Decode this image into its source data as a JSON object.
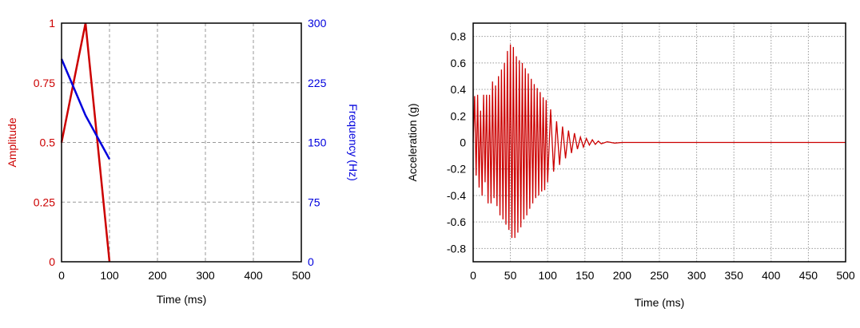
{
  "chart_data": [
    {
      "type": "line",
      "title": "",
      "xlabel": "Time (ms)",
      "ylabel": "Amplitude",
      "y2label": "Frequency (Hz)",
      "xlim": [
        0,
        500
      ],
      "ylim": [
        0,
        1
      ],
      "y2lim": [
        0,
        300
      ],
      "xticks": [
        "0",
        "100",
        "200",
        "300",
        "400",
        "500"
      ],
      "yticks": [
        "0",
        "0.25",
        "0.5",
        "0.75",
        "1"
      ],
      "y2ticks": [
        "0",
        "75",
        "150",
        "225",
        "300"
      ],
      "grid": true,
      "colors": {
        "amplitude": "#cc0000",
        "frequency": "#0000dd",
        "grid": "#999999"
      },
      "series": [
        {
          "axis": "left",
          "x": [
            0,
            50,
            100
          ],
          "y": [
            0.5,
            1,
            0
          ]
        },
        {
          "axis": "right",
          "x": [
            0,
            50,
            100
          ],
          "y": [
            255,
            184,
            129
          ]
        }
      ]
    },
    {
      "type": "line",
      "title": "",
      "xlabel": "Time (ms)",
      "ylabel": "Acceleration (g)",
      "xlim": [
        0,
        500
      ],
      "ylim": [
        -0.9,
        0.9
      ],
      "xticks": [
        "0",
        "50",
        "100",
        "150",
        "200",
        "250",
        "300",
        "350",
        "400",
        "450",
        "500"
      ],
      "yticks": [
        "0.8",
        "0.6",
        "0.4",
        "0.2",
        "0",
        "-0.2",
        "-0.4",
        "-0.6",
        "-0.8"
      ],
      "grid": true,
      "colors": {
        "signal": "#cc0000",
        "grid": "#999999"
      },
      "series": [
        {
          "x": [
            0,
            2,
            4,
            6,
            8,
            10,
            12,
            14,
            16,
            18,
            20,
            22,
            24,
            26,
            28,
            30,
            32,
            34,
            36,
            38,
            40,
            42,
            44,
            46,
            48,
            50,
            52,
            54,
            56,
            58,
            60,
            62,
            64,
            66,
            68,
            70,
            72,
            74,
            76,
            78,
            80,
            82,
            84,
            86,
            88,
            90,
            92,
            94,
            96,
            98,
            100,
            104,
            108,
            112,
            116,
            120,
            124,
            128,
            132,
            136,
            140,
            144,
            148,
            152,
            156,
            160,
            164,
            168,
            172,
            180,
            190,
            200,
            350,
            500
          ],
          "y": [
            0,
            0.35,
            -0.25,
            0.36,
            -0.34,
            0.24,
            -0.4,
            0.36,
            -0.3,
            0.36,
            -0.46,
            0.36,
            -0.46,
            0.46,
            -0.42,
            0.43,
            -0.48,
            0.5,
            -0.55,
            0.55,
            -0.58,
            0.6,
            -0.62,
            0.69,
            -0.66,
            0.74,
            -0.72,
            0.72,
            -0.72,
            0.65,
            -0.68,
            0.62,
            -0.64,
            0.6,
            -0.58,
            0.56,
            -0.55,
            0.52,
            -0.5,
            0.48,
            -0.46,
            0.44,
            -0.42,
            0.41,
            -0.4,
            0.38,
            -0.37,
            0.34,
            -0.36,
            0.32,
            -0.3,
            0.25,
            -0.22,
            0.16,
            -0.17,
            0.12,
            -0.12,
            0.09,
            -0.08,
            0.07,
            -0.05,
            0.04,
            -0.035,
            0.03,
            -0.02,
            0.02,
            -0.015,
            0.01,
            -0.01,
            0.005,
            -0.005,
            0,
            0,
            0
          ]
        }
      ]
    }
  ]
}
